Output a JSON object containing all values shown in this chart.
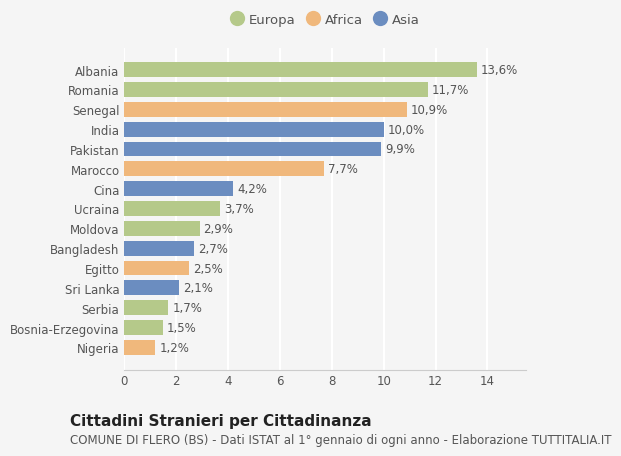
{
  "categories": [
    "Albania",
    "Romania",
    "Senegal",
    "India",
    "Pakistan",
    "Marocco",
    "Cina",
    "Ucraina",
    "Moldova",
    "Bangladesh",
    "Egitto",
    "Sri Lanka",
    "Serbia",
    "Bosnia-Erzegovina",
    "Nigeria"
  ],
  "values": [
    13.6,
    11.7,
    10.9,
    10.0,
    9.9,
    7.7,
    4.2,
    3.7,
    2.9,
    2.7,
    2.5,
    2.1,
    1.7,
    1.5,
    1.2
  ],
  "continents": [
    "Europa",
    "Europa",
    "Africa",
    "Asia",
    "Asia",
    "Africa",
    "Asia",
    "Europa",
    "Europa",
    "Asia",
    "Africa",
    "Asia",
    "Europa",
    "Europa",
    "Africa"
  ],
  "colors": {
    "Europa": "#b5c98a",
    "Africa": "#f0b87c",
    "Asia": "#6b8dc0"
  },
  "legend_order": [
    "Europa",
    "Africa",
    "Asia"
  ],
  "xlim": [
    0,
    15.5
  ],
  "xticks": [
    0,
    2,
    4,
    6,
    8,
    10,
    12,
    14
  ],
  "title": "Cittadini Stranieri per Cittadinanza",
  "subtitle": "COMUNE DI FLERO (BS) - Dati ISTAT al 1° gennaio di ogni anno - Elaborazione TUTTITALIA.IT",
  "bg_color": "#f5f5f5",
  "grid_color": "#ffffff",
  "bar_height": 0.75,
  "title_fontsize": 11,
  "subtitle_fontsize": 8.5,
  "label_fontsize": 8.5,
  "tick_fontsize": 8.5,
  "value_fontsize": 8.5
}
